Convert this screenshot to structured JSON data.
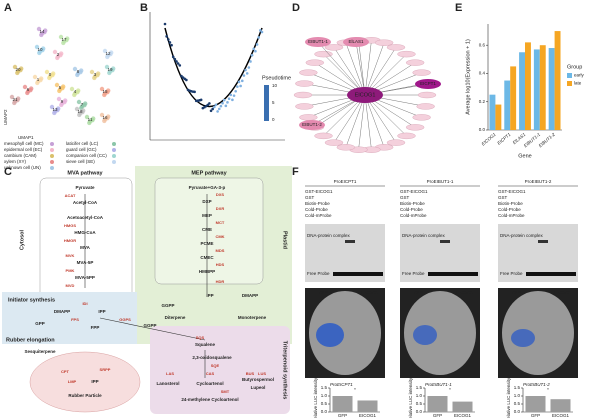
{
  "labels": {
    "A": "A",
    "B": "B",
    "C": "C",
    "D": "D",
    "E": "E",
    "F": "F"
  },
  "umap": {
    "xlabel": "UMAP1",
    "ylabel": "UMAP2",
    "clusters": [
      "14",
      "10",
      "2",
      "17",
      "20",
      "0",
      "6",
      "5",
      "8",
      "4",
      "7",
      "9",
      "13",
      "15",
      "19",
      "3",
      "12",
      "21",
      "11",
      "16",
      "18",
      "1"
    ],
    "legend": [
      "mesophyll cell (MC)",
      "epidermal cell (EC)",
      "cambium (CAM)",
      "xylem (XY)",
      "unknown cell (UN)",
      "laticifer cell (LC)",
      "guard cell (GC)",
      "companion cell (CC)",
      "sieve cell (SE)"
    ]
  },
  "pseudotime": {
    "title": "Pseudotime",
    "ticks": [
      10,
      5,
      0
    ]
  },
  "network": {
    "center": "EICOG1",
    "targets": [
      "EIBUT1-1",
      "ElLAS1",
      "EICPT1",
      "EIBUT1-2"
    ]
  },
  "pathway": {
    "titles": [
      "MVA pathway",
      "MEP pathway"
    ],
    "compartments": [
      "Cytosol",
      "Plastid",
      "Initiator synthesis",
      "Rubber elongation",
      "Triterpenoid synthesis"
    ],
    "nodes": [
      "Pyruvate",
      "Acetyl-CoA",
      "Acetoacetyl-CoA",
      "HMG-CoA",
      "MVA",
      "MVA-5P",
      "MVA-5PP",
      "IPP",
      "DMAPP",
      "GPP",
      "FPP",
      "GGPP",
      "Sesquiterpene",
      "Pyruvate+GA-3-p",
      "DXP",
      "MEP",
      "CME",
      "PCME",
      "CMEC",
      "HMBPP",
      "IPP",
      "DMAPP",
      "GGPP",
      "Diterpene",
      "Monoterpene",
      "Squalene",
      "2,3-oxidosqualene",
      "Lanosterol",
      "Cycloartenol",
      "Butyrospermol",
      "Lupeol",
      "24-methylene Cycloartenol",
      "Rubber Particle",
      "IPP"
    ],
    "enzymes": [
      "ACAT",
      "HMGS",
      "HMGR",
      "MVK",
      "PMK",
      "MVD",
      "DXS",
      "DXR",
      "MCT",
      "CMK",
      "MDS",
      "HDS",
      "HDR",
      "IDI",
      "FPS",
      "GGPS",
      "SQS",
      "SQE",
      "LAS",
      "CAS",
      "BUS",
      "LUS",
      "SMT",
      "CPT",
      "SRPP",
      "LMP"
    ]
  },
  "emsa": {
    "promoters": [
      "ProEICPT1",
      "ProEIBUT1-1",
      "ProEIBUT1-2"
    ],
    "rows": [
      "GST-EICOG1",
      "GST",
      "Biotin-Probe",
      "Cold-Probe",
      "Cold-mProbe"
    ],
    "complex": "DNA-protein complex",
    "free": "Free Probe",
    "leaf": [
      "GFP",
      "EICOG1"
    ]
  },
  "chart_data": [
    {
      "type": "bar",
      "xlabel": "Gene",
      "ylabel": "Average log10(Expression + 1)",
      "categories": [
        "EICOG1",
        "EICPT1",
        "ElLAS1",
        "EIBUT1-1",
        "EIBUT1-2"
      ],
      "series": [
        {
          "name": "early",
          "color": "#6cb8e6",
          "values": [
            0.25,
            0.35,
            0.55,
            0.57,
            0.58
          ]
        },
        {
          "name": "late",
          "color": "#f5a623",
          "values": [
            0.18,
            0.45,
            0.62,
            0.6,
            0.7
          ]
        }
      ],
      "legend_title": "Group",
      "legend": "right",
      "ylim": [
        0,
        0.75
      ],
      "yticks": [
        {
          "value": 0,
          "label": "0.0"
        },
        0.2,
        0.4,
        0.6
      ]
    },
    {
      "type": "bar",
      "title": "ProEICPT1",
      "ylabel": "Relative LUC intensity",
      "categories": [
        "GFP",
        "EICOG1"
      ],
      "values": [
        1.0,
        0.72
      ],
      "color": "#9e9e9e",
      "annotation": "*",
      "ylim": [
        0,
        1.5
      ],
      "yticks": [
        {
          "value": 0,
          "label": "0.0"
        },
        0.5,
        {
          "value": 1,
          "label": "1.0"
        },
        1.5
      ]
    },
    {
      "type": "bar",
      "title": "ProEIBUT1-1",
      "ylabel": "Relative LUC intensity",
      "categories": [
        "GFP",
        "EICOG1"
      ],
      "values": [
        1.0,
        0.65
      ],
      "color": "#9e9e9e",
      "annotation": "*",
      "ylim": [
        0,
        1.5
      ],
      "yticks": [
        {
          "value": 0,
          "label": "0.0"
        },
        0.5,
        {
          "value": 1,
          "label": "1.0"
        },
        1.5
      ]
    },
    {
      "type": "bar",
      "title": "ProEIBUT1-2",
      "ylabel": "Relative LUC intensity",
      "categories": [
        "GFP",
        "EICOG1"
      ],
      "values": [
        1.0,
        0.8
      ],
      "color": "#9e9e9e",
      "annotation": "*",
      "ylim": [
        0,
        1.5
      ],
      "yticks": [
        {
          "value": 0,
          "label": "0.0"
        },
        0.5,
        {
          "value": 1,
          "label": "1.0"
        },
        1.5
      ]
    }
  ]
}
